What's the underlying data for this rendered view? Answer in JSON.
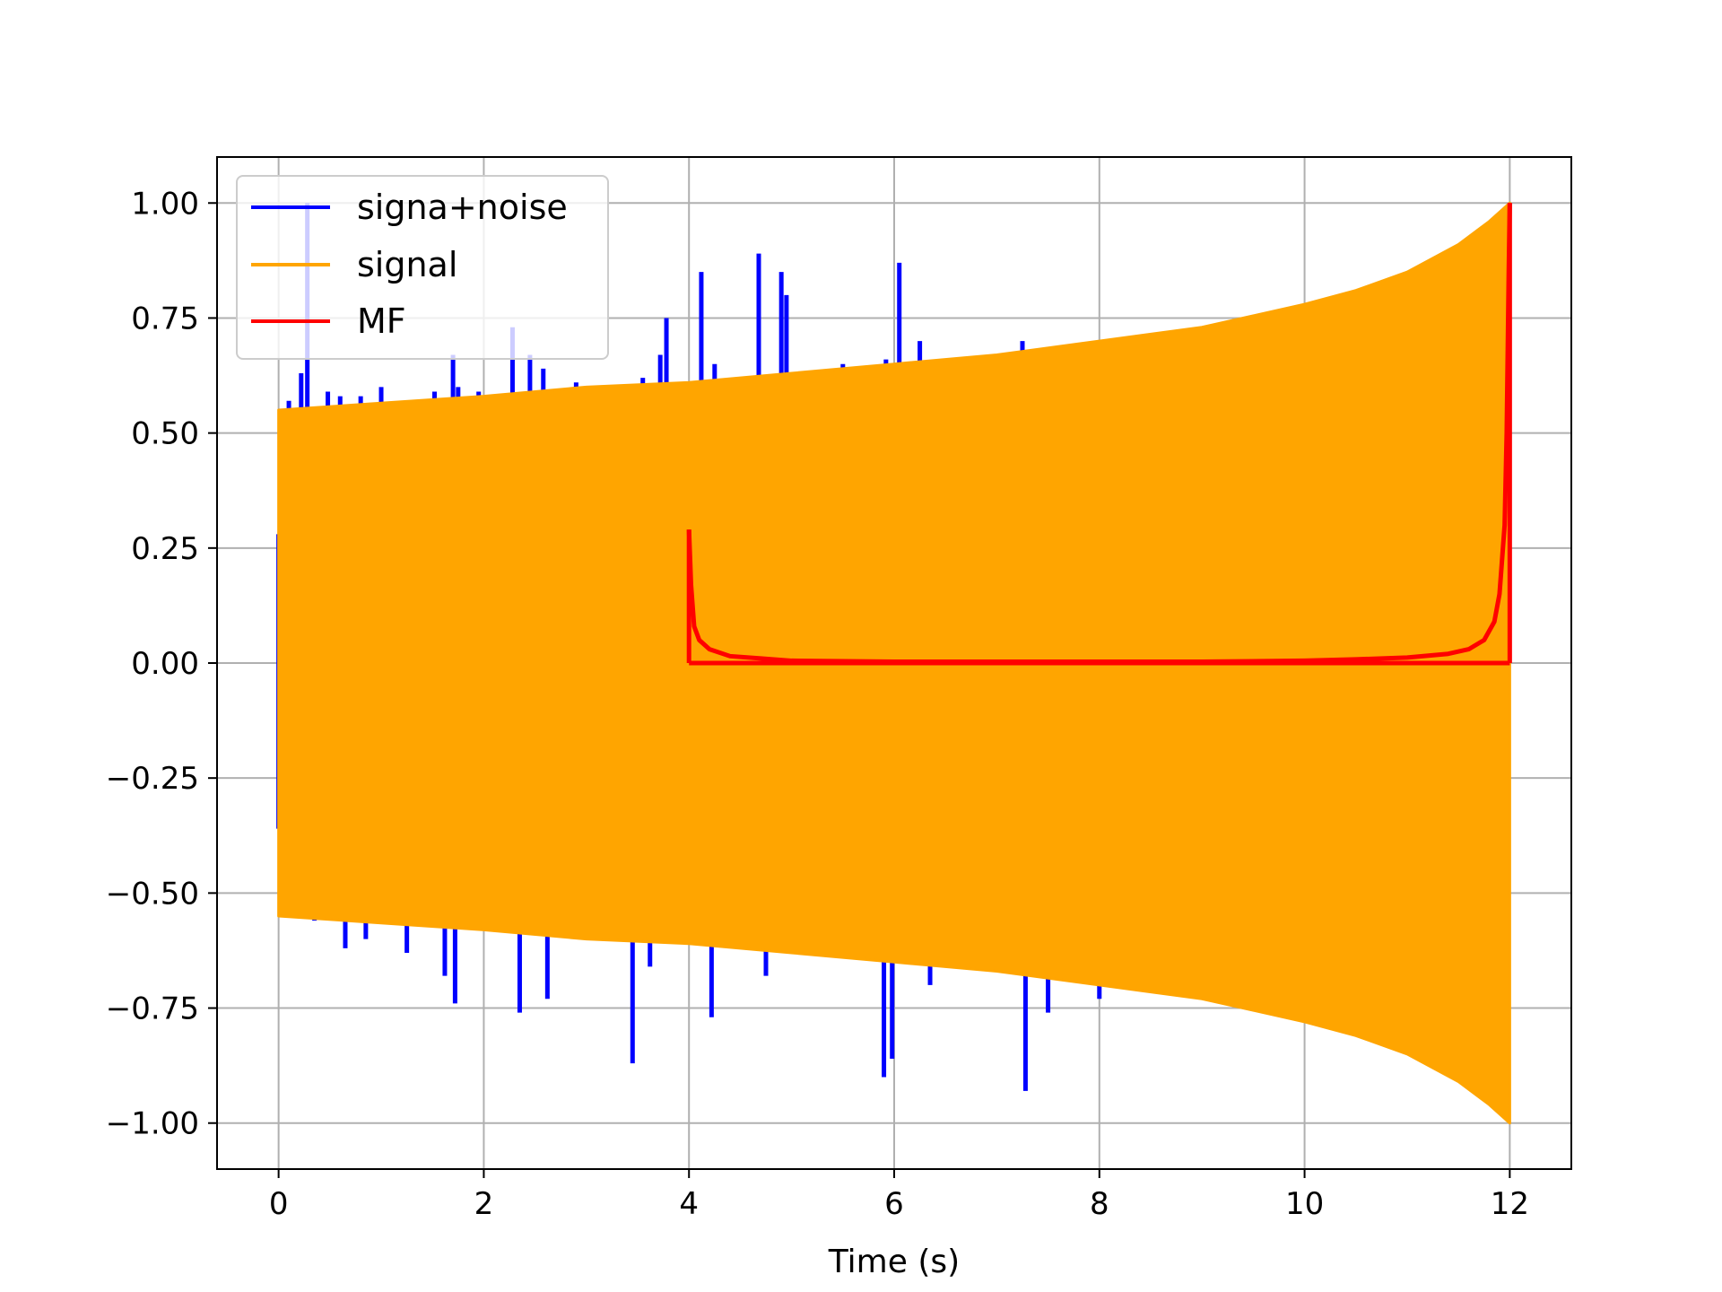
{
  "chart_data": {
    "type": "line",
    "title": "",
    "xlabel": "Time (s)",
    "ylabel": "",
    "xlim": [
      -0.6,
      12.6
    ],
    "ylim": [
      -1.1,
      1.1
    ],
    "xticks": [
      0,
      2,
      4,
      6,
      8,
      10,
      12
    ],
    "xtick_labels": [
      "0",
      "2",
      "4",
      "6",
      "8",
      "10",
      "12"
    ],
    "yticks": [
      1.0,
      0.75,
      0.5,
      0.25,
      0.0,
      -0.25,
      -0.5,
      -0.75,
      -1.0
    ],
    "ytick_labels": [
      "1.00",
      "0.75",
      "0.50",
      "0.25",
      "0.00",
      "−0.25",
      "−0.50",
      "−0.75",
      "−1.00"
    ],
    "grid": true,
    "legend_position": "upper-left",
    "series": [
      {
        "name": "signa+noise",
        "color": "#0000ff",
        "render": "spikes",
        "x": [
          0.0,
          0.0,
          0.1,
          0.15,
          0.22,
          0.28,
          0.35,
          0.48,
          0.6,
          0.65,
          0.8,
          0.85,
          1.0,
          1.2,
          1.25,
          1.52,
          1.62,
          1.7,
          1.75,
          1.72,
          1.95,
          2.28,
          2.35,
          2.45,
          2.58,
          2.62,
          2.9,
          3.45,
          3.55,
          3.62,
          3.72,
          3.78,
          4.12,
          4.22,
          4.25,
          4.68,
          4.75,
          4.9,
          4.95,
          5.0,
          5.5,
          5.9,
          5.92,
          5.98,
          6.05,
          6.25,
          6.35,
          6.45,
          7.25,
          7.28,
          7.5,
          8.0
        ],
        "y": [
          0.28,
          -0.36,
          0.57,
          0.55,
          0.63,
          1.0,
          -0.56,
          0.59,
          0.58,
          -0.62,
          0.58,
          -0.6,
          0.6,
          0.57,
          -0.63,
          0.59,
          -0.68,
          0.67,
          0.6,
          -0.74,
          0.59,
          0.73,
          -0.76,
          0.67,
          0.64,
          -0.73,
          0.61,
          -0.87,
          0.62,
          -0.66,
          0.67,
          0.75,
          0.85,
          -0.77,
          0.65,
          0.89,
          -0.68,
          0.85,
          0.8,
          -0.63,
          0.65,
          -0.9,
          0.66,
          -0.86,
          0.87,
          0.7,
          -0.7,
          0.64,
          0.7,
          -0.93,
          -0.76,
          -0.73
        ]
      },
      {
        "name": "signal",
        "color": "#ffa500",
        "render": "envelope",
        "x": [
          0.0,
          1.0,
          2.0,
          3.0,
          4.0,
          5.0,
          6.0,
          7.0,
          8.0,
          9.0,
          10.0,
          10.5,
          11.0,
          11.5,
          11.8,
          12.0
        ],
        "upper": [
          0.55,
          0.565,
          0.58,
          0.6,
          0.61,
          0.63,
          0.65,
          0.67,
          0.7,
          0.73,
          0.78,
          0.81,
          0.85,
          0.91,
          0.96,
          1.0
        ],
        "lower": [
          -0.55,
          -0.565,
          -0.58,
          -0.6,
          -0.61,
          -0.63,
          -0.65,
          -0.67,
          -0.7,
          -0.73,
          -0.78,
          -0.81,
          -0.85,
          -0.91,
          -0.96,
          -1.0
        ]
      },
      {
        "name": "MF",
        "color": "#ff0000",
        "render": "line",
        "x": [
          4.0,
          4.02,
          4.05,
          4.1,
          4.2,
          4.4,
          4.7,
          5.0,
          6.0,
          7.0,
          8.0,
          9.0,
          10.0,
          10.5,
          11.0,
          11.4,
          11.6,
          11.75,
          11.85,
          11.9,
          11.95,
          11.97,
          11.99,
          12.0
        ],
        "y": [
          0.29,
          0.17,
          0.08,
          0.05,
          0.03,
          0.015,
          0.01,
          0.005,
          0.003,
          0.003,
          0.003,
          0.003,
          0.005,
          0.008,
          0.012,
          0.02,
          0.03,
          0.05,
          0.09,
          0.15,
          0.3,
          0.5,
          0.85,
          1.0
        ]
      }
    ]
  }
}
